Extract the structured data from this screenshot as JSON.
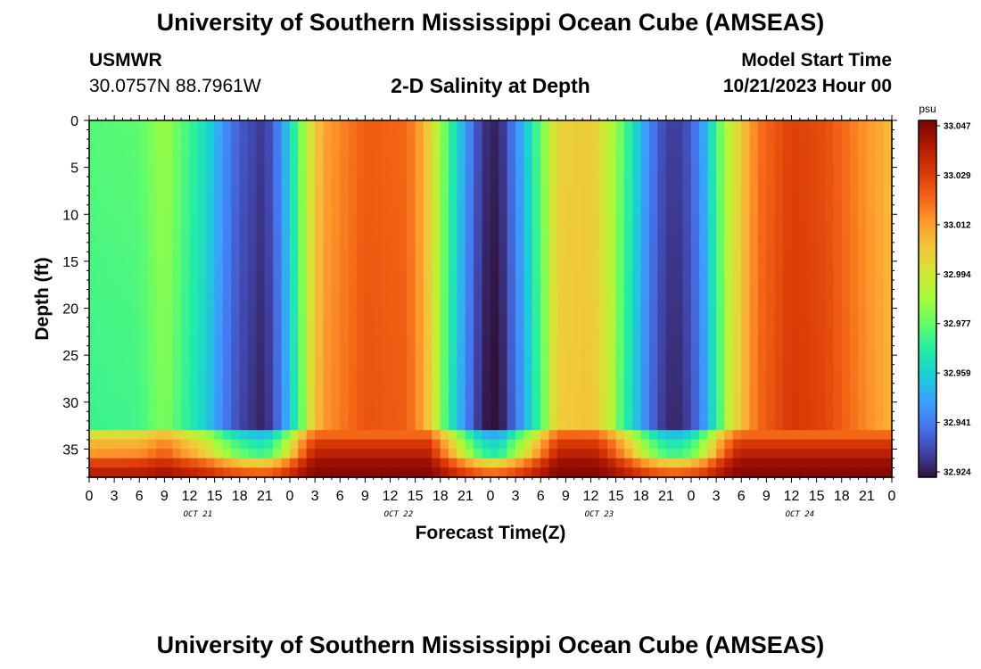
{
  "header": {
    "title": "University of Southern Mississippi Ocean Cube (AMSEAS)",
    "title_repeat": "University of Southern Mississippi Ocean Cube (AMSEAS)",
    "station": "USMWR",
    "coords": "30.0757N  88.7961W",
    "subtitle": "2-D Salinity at Depth",
    "start_label": "Model Start Time",
    "start_value": "10/21/2023 Hour 00"
  },
  "colorbar": {
    "unit": "psu",
    "ticks": [
      "33.047",
      "33.029",
      "33.012",
      "32.994",
      "32.977",
      "32.959",
      "32.941",
      "32.924"
    ],
    "min": 32.924,
    "max": 33.047,
    "colors": [
      "#30123b",
      "#4145ab",
      "#4675ed",
      "#39a2fc",
      "#1bcfd4",
      "#24eca6",
      "#61fc6c",
      "#a4fc3b",
      "#d1e834",
      "#f3c63a",
      "#fe9b2d",
      "#f36315",
      "#d93806",
      "#b11901",
      "#7a0403"
    ]
  },
  "chart_data": {
    "type": "heatmap",
    "title": "2-D Salinity at Depth",
    "xlabel": "Forecast Time(Z)",
    "ylabel": "Depth (ft)",
    "xlim": [
      0,
      96
    ],
    "ylim": [
      0,
      38
    ],
    "x_tick_labels": [
      "0",
      "3",
      "6",
      "9",
      "12",
      "15",
      "18",
      "21",
      "0",
      "3",
      "6",
      "9",
      "12",
      "15",
      "18",
      "21",
      "0",
      "3",
      "6",
      "9",
      "12",
      "15",
      "18",
      "21",
      "0",
      "3",
      "6",
      "9",
      "12",
      "15",
      "18",
      "21",
      "0"
    ],
    "y_tick_labels": [
      "0",
      "5",
      "10",
      "15",
      "20",
      "25",
      "30",
      "35"
    ],
    "day_labels": [
      "OCT 21",
      "OCT 22",
      "OCT 23",
      "OCT 24"
    ],
    "z_unit": "psu",
    "z_range": [
      32.924,
      33.047
    ],
    "surface_salinity_profile": {
      "hours": [
        0,
        6,
        9,
        14,
        16,
        18,
        21,
        23,
        26,
        28,
        33,
        38,
        40,
        42,
        45,
        47,
        49,
        52,
        56,
        60,
        62,
        64,
        67,
        69,
        71,
        73,
        76,
        80,
        84,
        88,
        92,
        96
      ],
      "salinity": [
        32.975,
        32.976,
        32.985,
        32.963,
        32.948,
        32.937,
        32.93,
        32.947,
        32.99,
        33.01,
        33.022,
        33.02,
        33.008,
        32.985,
        32.95,
        32.93,
        32.926,
        32.955,
        33.0,
        33.002,
        32.992,
        32.975,
        32.945,
        32.932,
        32.932,
        32.945,
        32.985,
        33.018,
        33.028,
        33.025,
        33.015,
        33.005
      ]
    },
    "bottom_layer_salinity": {
      "depth_ft": [
        34,
        35,
        36,
        37,
        38
      ],
      "salinity": [
        33.02,
        33.03,
        33.036,
        33.042,
        33.045
      ]
    }
  }
}
